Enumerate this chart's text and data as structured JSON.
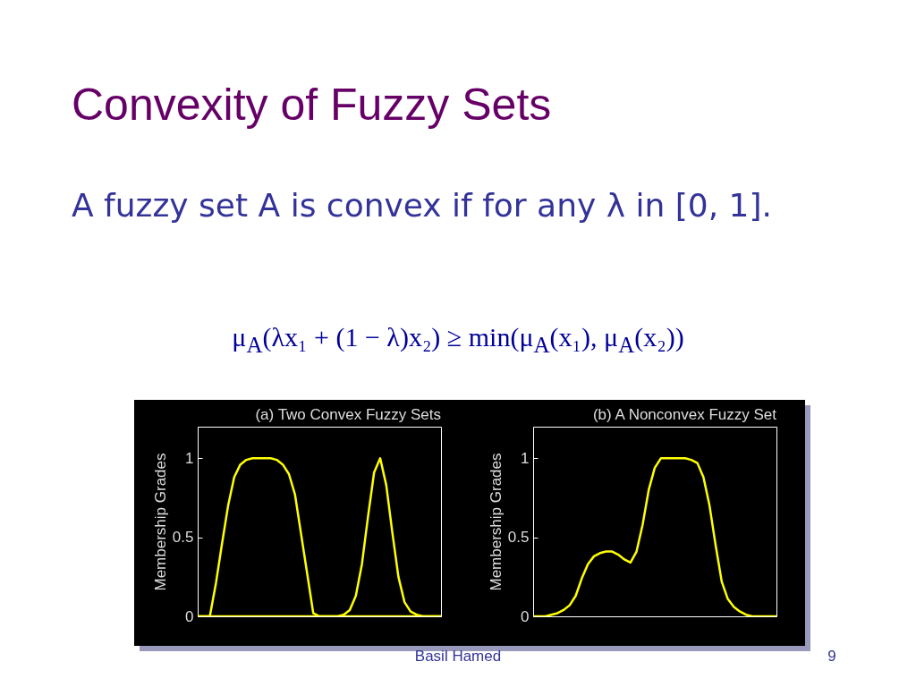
{
  "chart_data": [
    {
      "type": "line",
      "title": "(a) Two Convex Fuzzy Sets",
      "ylabel": "Membership Grades",
      "annotations": [
        "Convexity of Fuzzy Sets",
        "A fuzzy set A is convex if for any λ in [0, 1].",
        "μ$_{A}$(λx₁ + (1 − λ)x₂) ≥ min(μ$_{A}$(x₁), μ$_{A}$(x₂))",
        "Basil Hamed",
        "9"
      ],
      "categories": [
        null,
        null,
        null,
        null,
        null,
        null,
        null,
        null,
        null,
        null,
        null,
        null,
        null,
        null,
        null,
        null,
        null,
        null,
        null,
        null,
        null,
        null,
        null,
        null,
        null,
        null,
        null,
        null,
        null,
        null,
        null,
        null,
        null,
        null,
        null,
        null,
        null,
        null,
        null,
        null,
        null
      ],
      "series": [
        {
          "color": "#ffff00",
          "values": [
            0,
            0,
            0,
            0.21,
            0.46,
            0.7,
            0.88,
            0.96,
            0.99,
            1,
            1,
            1,
            1,
            0.99,
            0.96,
            0.9,
            0.77,
            0.52,
            0.27,
            0.02,
            0,
            0,
            0,
            0,
            0,
            0,
            0,
            0,
            0,
            0,
            0,
            0,
            0,
            0,
            0,
            0,
            0,
            0,
            0,
            0,
            0
          ]
        },
        {
          "color": "#ffff00",
          "values": [
            0,
            0,
            0,
            0,
            0,
            0,
            0,
            0,
            0,
            0,
            0,
            0,
            0,
            0,
            0,
            0,
            0,
            0,
            0,
            0,
            0,
            0,
            0,
            0,
            0.01,
            0.04,
            0.13,
            0.33,
            0.63,
            0.91,
            1,
            0.83,
            0.53,
            0.25,
            0.09,
            0.03,
            0.01,
            0,
            0,
            0,
            0
          ]
        }
      ],
      "ylim": [
        0,
        1.2
      ],
      "yticks": [
        0,
        0.5,
        1
      ],
      "tick_labels": "y"
    },
    {
      "type": "line",
      "title": "(b) A Nonconvex Fuzzy Set",
      "ylabel": "Membership Grades",
      "categories": [
        null,
        null,
        null,
        null,
        null,
        null,
        null,
        null,
        null,
        null,
        null,
        null,
        null,
        null,
        null,
        null,
        null,
        null,
        null,
        null,
        null,
        null,
        null,
        null,
        null,
        null,
        null,
        null,
        null,
        null,
        null,
        null,
        null,
        null,
        null,
        null,
        null,
        null,
        null,
        null,
        null
      ],
      "series": [
        {
          "color": "#ffff00",
          "values": [
            0,
            0,
            0,
            0.01,
            0.02,
            0.04,
            0.07,
            0.13,
            0.24,
            0.33,
            0.38,
            0.4,
            0.41,
            0.41,
            0.39,
            0.36,
            0.34,
            0.41,
            0.58,
            0.8,
            0.94,
            1,
            1,
            1,
            1,
            1,
            0.99,
            0.97,
            0.88,
            0.7,
            0.45,
            0.22,
            0.11,
            0.06,
            0.03,
            0.01,
            0,
            0,
            0,
            0,
            0
          ]
        }
      ],
      "ylim": [
        0,
        1.2
      ],
      "yticks": [
        0,
        0.5,
        1
      ],
      "tick_labels": "y"
    }
  ]
}
